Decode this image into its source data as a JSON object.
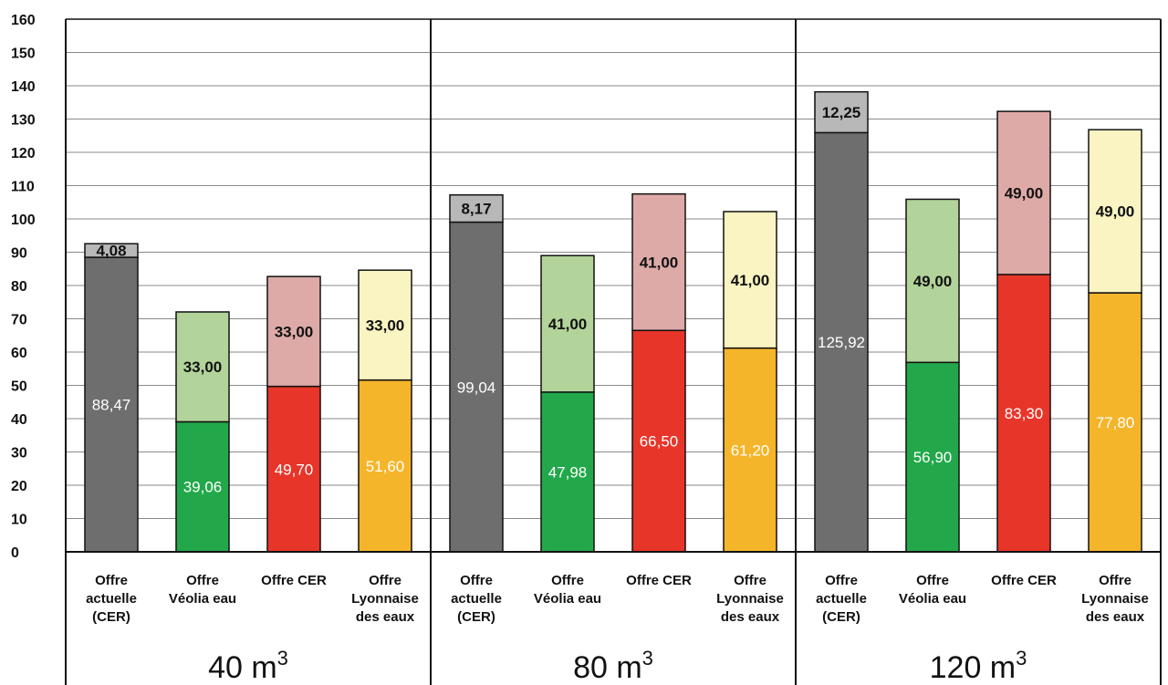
{
  "chart_data": {
    "type": "bar",
    "stacked": true,
    "ylim": [
      0,
      160
    ],
    "yticks": [
      "0",
      "10",
      "20",
      "30",
      "40",
      "50",
      "60",
      "70",
      "80",
      "90",
      "100",
      "110",
      "120",
      "130",
      "140",
      "150",
      "160"
    ],
    "grid": true,
    "groups": [
      {
        "volume": "40 m",
        "volume_sup": "3",
        "bars": [
          {
            "category": [
              "Offre",
              "actuelle",
              "(CER)"
            ],
            "base_value": 88.47,
            "base_label": "88,47",
            "top_value": 4.08,
            "top_label": "4,08",
            "base_color": "#6e6e6e",
            "top_color": "#b8b8b8"
          },
          {
            "category": [
              "Offre",
              "Véolia eau"
            ],
            "base_value": 39.06,
            "base_label": "39,06",
            "top_value": 33.0,
            "top_label": "33,00",
            "base_color": "#22a84a",
            "top_color": "#b2d39a"
          },
          {
            "category": [
              "Offre CER"
            ],
            "base_value": 49.7,
            "base_label": "49,70",
            "top_value": 33.0,
            "top_label": "33,00",
            "base_color": "#e8352a",
            "top_color": "#ddaaa8"
          },
          {
            "category": [
              "Offre",
              "Lyonnaise",
              "des eaux"
            ],
            "base_value": 51.6,
            "base_label": "51,60",
            "top_value": 33.0,
            "top_label": "33,00",
            "base_color": "#f5b52a",
            "top_color": "#faf4c2"
          }
        ]
      },
      {
        "volume": "80 m",
        "volume_sup": "3",
        "bars": [
          {
            "category": [
              "Offre",
              "actuelle",
              "(CER)"
            ],
            "base_value": 99.04,
            "base_label": "99,04",
            "top_value": 8.17,
            "top_label": "8,17",
            "base_color": "#6e6e6e",
            "top_color": "#b8b8b8"
          },
          {
            "category": [
              "Offre",
              "Véolia eau"
            ],
            "base_value": 47.98,
            "base_label": "47,98",
            "top_value": 41.0,
            "top_label": "41,00",
            "base_color": "#22a84a",
            "top_color": "#b2d39a"
          },
          {
            "category": [
              "Offre CER"
            ],
            "base_value": 66.5,
            "base_label": "66,50",
            "top_value": 41.0,
            "top_label": "41,00",
            "base_color": "#e8352a",
            "top_color": "#ddaaa8"
          },
          {
            "category": [
              "Offre",
              "Lyonnaise",
              "des eaux"
            ],
            "base_value": 61.2,
            "base_label": "61,20",
            "top_value": 41.0,
            "top_label": "41,00",
            "base_color": "#f5b52a",
            "top_color": "#faf4c2"
          }
        ]
      },
      {
        "volume": "120 m",
        "volume_sup": "3",
        "bars": [
          {
            "category": [
              "Offre",
              "actuelle",
              "(CER)"
            ],
            "base_value": 125.92,
            "base_label": "125,92",
            "top_value": 12.25,
            "top_label": "12,25",
            "base_color": "#6e6e6e",
            "top_color": "#b8b8b8"
          },
          {
            "category": [
              "Offre",
              "Véolia eau"
            ],
            "base_value": 56.9,
            "base_label": "56,90",
            "top_value": 49.0,
            "top_label": "49,00",
            "base_color": "#22a84a",
            "top_color": "#b2d39a"
          },
          {
            "category": [
              "Offre CER"
            ],
            "base_value": 83.3,
            "base_label": "83,30",
            "top_value": 49.0,
            "top_label": "49,00",
            "base_color": "#e8352a",
            "top_color": "#ddaaa8"
          },
          {
            "category": [
              "Offre",
              "Lyonnaise",
              "des eaux"
            ],
            "base_value": 77.8,
            "base_label": "77,80",
            "top_value": 49.0,
            "top_label": "49,00",
            "base_color": "#f5b52a",
            "top_color": "#faf4c2"
          }
        ]
      }
    ]
  }
}
